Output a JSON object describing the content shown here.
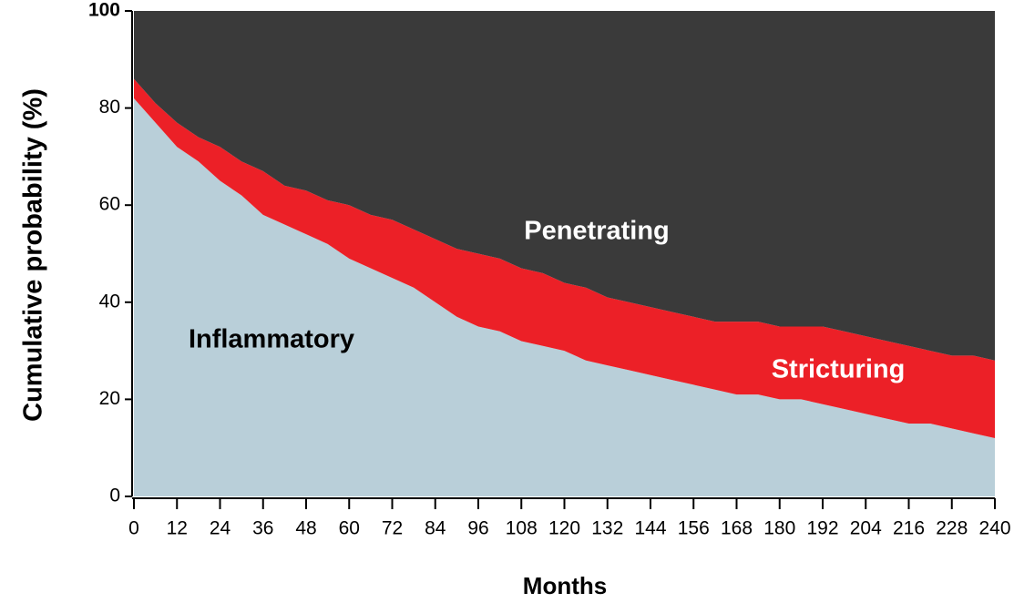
{
  "chart_data": {
    "type": "stacked_area",
    "xlabel": "Months",
    "ylabel": "Cumulative probability (%)",
    "x": [
      0,
      6,
      12,
      18,
      24,
      30,
      36,
      42,
      48,
      54,
      60,
      66,
      72,
      78,
      84,
      90,
      96,
      102,
      108,
      114,
      120,
      126,
      132,
      138,
      144,
      150,
      156,
      162,
      168,
      174,
      180,
      186,
      192,
      198,
      204,
      210,
      216,
      222,
      228,
      234,
      240
    ],
    "series": [
      {
        "name": "Inflammatory",
        "color": "#b9cfd9",
        "values": [
          82,
          77,
          72,
          69,
          65,
          62,
          58,
          56,
          54,
          52,
          49,
          47,
          45,
          43,
          40,
          37,
          35,
          34,
          32,
          31,
          30,
          28,
          27,
          26,
          25,
          24,
          23,
          22,
          21,
          21,
          20,
          20,
          19,
          18,
          17,
          16,
          15,
          15,
          14,
          13,
          12
        ]
      },
      {
        "name": "Stricturing",
        "color": "#ec2027",
        "values": [
          4,
          4,
          5,
          5,
          7,
          7,
          9,
          8,
          9,
          9,
          11,
          11,
          12,
          12,
          13,
          14,
          15,
          15,
          15,
          15,
          14,
          15,
          14,
          14,
          14,
          14,
          14,
          14,
          15,
          15,
          15,
          15,
          16,
          16,
          16,
          16,
          16,
          15,
          15,
          16,
          16
        ]
      },
      {
        "name": "Penetrating",
        "color": "#3a3a3a",
        "values": [
          14,
          19,
          23,
          26,
          28,
          31,
          33,
          36,
          37,
          39,
          40,
          42,
          43,
          45,
          47,
          49,
          50,
          51,
          53,
          54,
          56,
          57,
          59,
          60,
          61,
          62,
          63,
          64,
          64,
          64,
          65,
          65,
          65,
          66,
          67,
          68,
          69,
          70,
          71,
          71,
          72
        ]
      }
    ],
    "xlim": [
      0,
      240
    ],
    "xticks": [
      0,
      12,
      24,
      36,
      48,
      60,
      72,
      84,
      96,
      108,
      120,
      132,
      144,
      156,
      168,
      180,
      192,
      204,
      216,
      228,
      240
    ],
    "ylim": [
      0,
      100
    ],
    "yticks": [
      0,
      20,
      40,
      60,
      80,
      100
    ]
  }
}
